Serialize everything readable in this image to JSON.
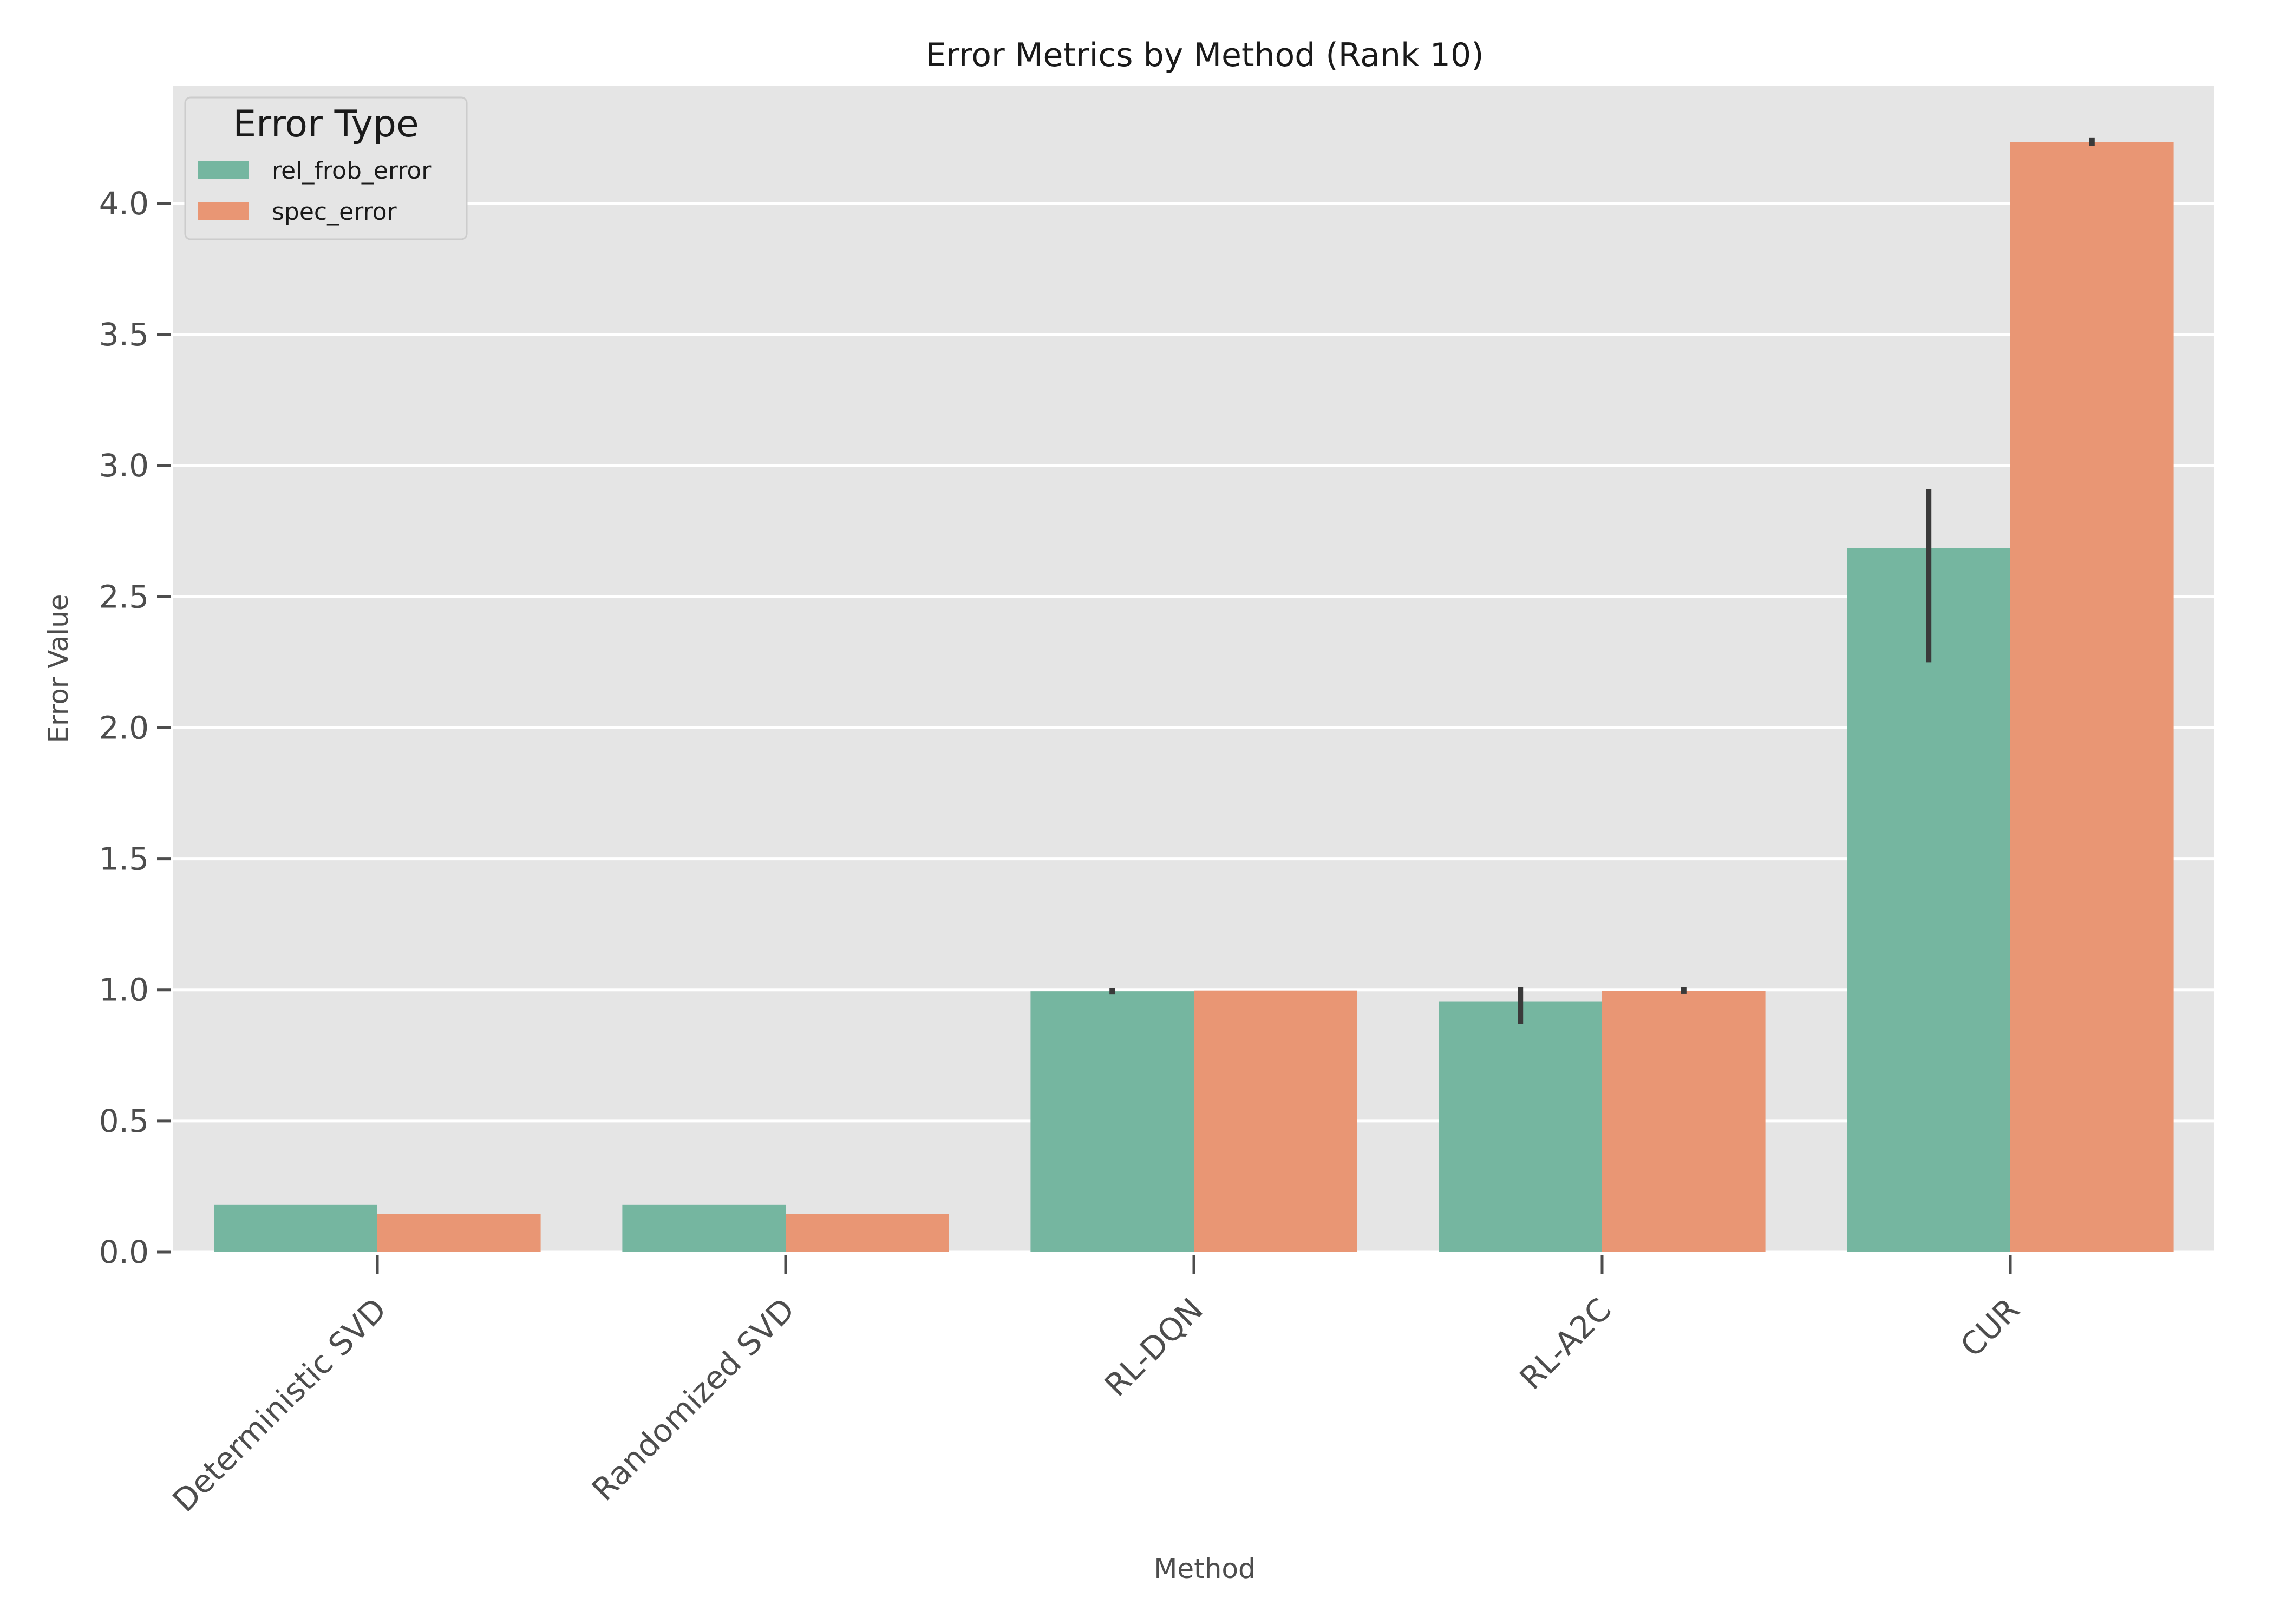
{
  "chart_data": {
    "type": "bar",
    "title": "Error Metrics by Method (Rank 10)",
    "xlabel": "Method",
    "ylabel": "Error Value",
    "categories": [
      "Deterministic SVD",
      "Randomized SVD",
      "RL-DQN",
      "RL-A2C",
      "CUR"
    ],
    "series": [
      {
        "name": "rel_frob_error",
        "color": "#75b6a0",
        "values": [
          0.18,
          0.18,
          0.995,
          0.955,
          2.685
        ],
        "error_low": [
          0.18,
          0.18,
          0.985,
          0.87,
          2.25
        ],
        "error_high": [
          0.18,
          0.18,
          1.005,
          1.01,
          2.91
        ]
      },
      {
        "name": "spec_error",
        "color": "#e99674",
        "values": [
          0.145,
          0.145,
          0.998,
          0.997,
          4.235
        ],
        "error_low": [
          0.145,
          0.145,
          0.998,
          0.99,
          4.22
        ],
        "error_high": [
          0.145,
          0.145,
          0.998,
          1.005,
          4.25
        ]
      }
    ],
    "ylim": [
      0,
      4.45
    ],
    "yticks": [
      0.0,
      0.5,
      1.0,
      1.5,
      2.0,
      2.5,
      3.0,
      3.5,
      4.0
    ],
    "ytick_labels": [
      "0.0",
      "0.5",
      "1.0",
      "1.5",
      "2.0",
      "2.5",
      "3.0",
      "3.5",
      "4.0"
    ],
    "grid": true,
    "legend": {
      "title": "Error Type",
      "placement": "top-left",
      "items": [
        "rel_frob_error",
        "spec_error"
      ]
    }
  }
}
